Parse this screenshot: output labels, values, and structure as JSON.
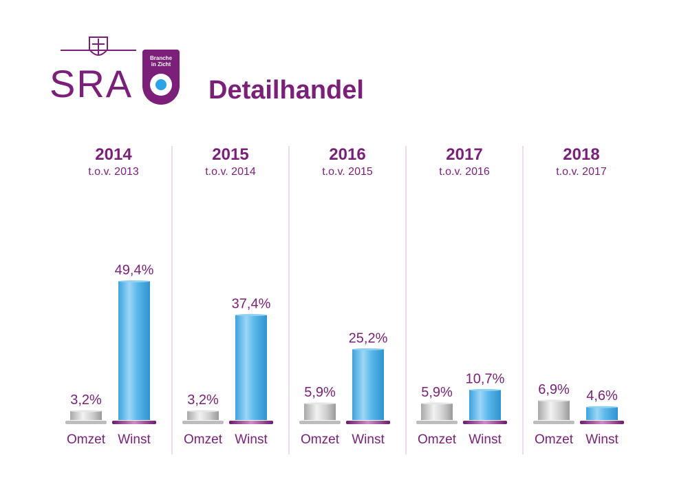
{
  "header": {
    "logo_text": "SRA",
    "badge_line1": "Branche",
    "badge_line2": "in Zicht",
    "title": "Detailhandel"
  },
  "colors": {
    "accent": "#7b1f7a",
    "winst_bar": "#5ab8ea",
    "omzet_bar": "#c8c8c8",
    "divider": "#d9b8d9"
  },
  "chart_data": {
    "type": "bar",
    "unit": "%",
    "ylim": [
      0,
      52
    ],
    "categories": [
      "Omzet",
      "Winst"
    ],
    "groups": [
      {
        "year": "2014",
        "subtitle": "t.o.v. 2013",
        "values": [
          3.2,
          49.4
        ],
        "labels": [
          "3,2%",
          "49,4%"
        ]
      },
      {
        "year": "2015",
        "subtitle": "t.o.v. 2014",
        "values": [
          3.2,
          37.4
        ],
        "labels": [
          "3,2%",
          "37,4%"
        ]
      },
      {
        "year": "2016",
        "subtitle": "t.o.v. 2015",
        "values": [
          5.9,
          25.2
        ],
        "labels": [
          "5,9%",
          "25,2%"
        ]
      },
      {
        "year": "2017",
        "subtitle": "t.o.v. 2016",
        "values": [
          5.9,
          10.7
        ],
        "labels": [
          "5,9%",
          "10,7%"
        ]
      },
      {
        "year": "2018",
        "subtitle": "t.o.v. 2017",
        "values": [
          6.9,
          4.6
        ],
        "labels": [
          "6,9%",
          "4,6%"
        ]
      }
    ],
    "grid": false
  }
}
